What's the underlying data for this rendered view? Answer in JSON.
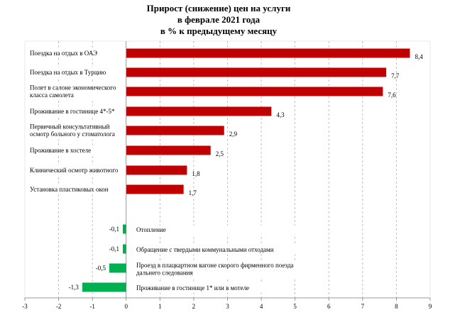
{
  "chart_data": {
    "type": "bar",
    "orientation": "horizontal",
    "title": [
      "Прирост  (снижение)  цен на услуги",
      "в феврале  2021 года",
      "в % к предыдущему  месяцу"
    ],
    "xlim": [
      -3,
      9
    ],
    "xticks": [
      "-3",
      "-2",
      "-1",
      "0",
      "1",
      "2",
      "3",
      "4",
      "5",
      "6",
      "7",
      "8",
      "9"
    ],
    "grid": "vertical dashed",
    "colors": {
      "positive": "#c00000",
      "negative": "#00b050"
    },
    "bars": [
      {
        "label": [
          "Поездка на отдых в ОАЭ"
        ],
        "value": 8.4,
        "value_label": "8,4"
      },
      {
        "label": [
          "Поездка на отдых в Турцию"
        ],
        "value": 7.7,
        "value_label": "7,7"
      },
      {
        "label": [
          "Полет в салоне экономического",
          "класса самолета"
        ],
        "value": 7.6,
        "value_label": "7,6"
      },
      {
        "label": [
          "Проживание в гостинице 4*-5*"
        ],
        "value": 4.3,
        "value_label": "4,3"
      },
      {
        "label": [
          "Первичный консультативный",
          "осмотр больного у стоматолога"
        ],
        "value": 2.9,
        "value_label": "2,9"
      },
      {
        "label": [
          "Проживание в хостеле"
        ],
        "value": 2.5,
        "value_label": "2,5"
      },
      {
        "label": [
          "Клинический осмотр животного"
        ],
        "value": 1.8,
        "value_label": "1,8"
      },
      {
        "label": [
          "Установка  пластиковых  окон"
        ],
        "value": 1.7,
        "value_label": "1,7"
      },
      {
        "label": [
          "Отопление"
        ],
        "value": -0.1,
        "value_label": "-0,1"
      },
      {
        "label": [
          "Обращение с твердыми коммунальными отходами"
        ],
        "value": -0.1,
        "value_label": "-0,1"
      },
      {
        "label": [
          "Проезд в плацкартном вагоне скорого фирменного поезда",
          "дальнего следования"
        ],
        "value": -0.5,
        "value_label": "-0,5"
      },
      {
        "label": [
          "Проживание в гостинице 1* или в мотеле"
        ],
        "value": -1.3,
        "value_label": "-1,3"
      }
    ]
  }
}
